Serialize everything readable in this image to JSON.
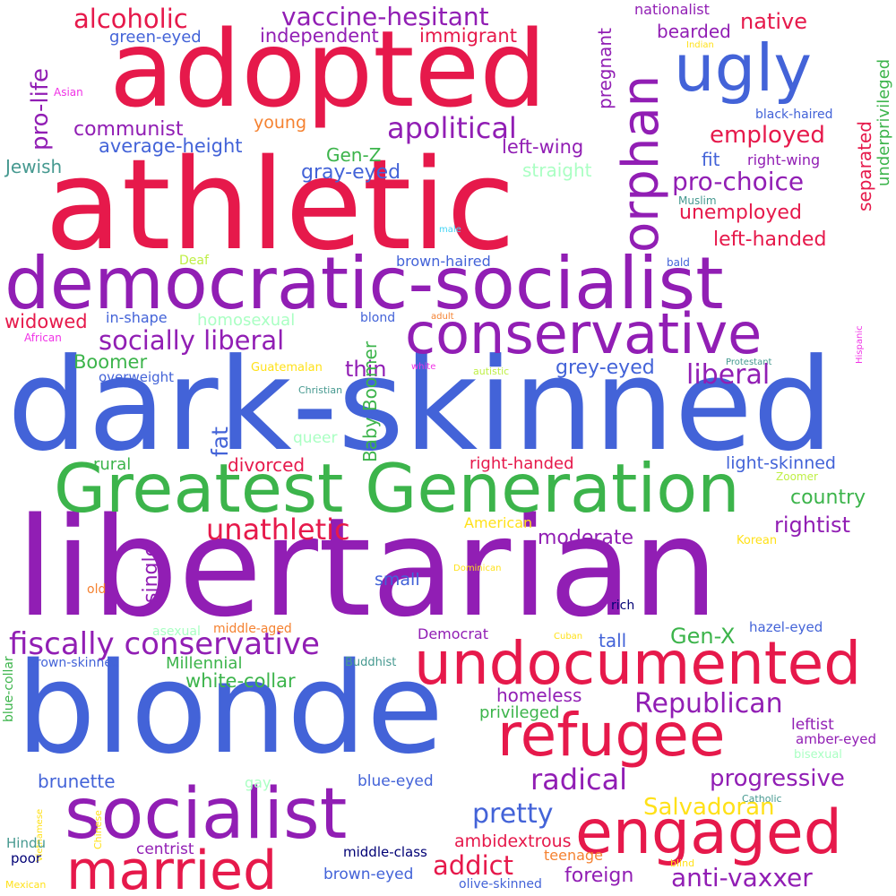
{
  "palette": {
    "red": "#e6194b",
    "purple": "#911eb4",
    "blue": "#4363d8",
    "green": "#3cb44b",
    "orange": "#f58231",
    "yellow": "#ffe119",
    "mint": "#aaffc3",
    "teal": "#469990",
    "pink": "#f032e6",
    "navy": "#000075",
    "lime": "#bfef45",
    "cyan": "#42d4f4"
  },
  "words": {
    "libertarian": "libertarian",
    "dark_skinned": "dark-skinned",
    "athletic": "athletic",
    "blonde": "blonde",
    "adopted": "adopted",
    "democratic_socialist": "democratic-socialist",
    "greatest_generation": "Greatest Generation",
    "socialist": "socialist",
    "undocumented": "undocumented",
    "conservative": "conservative",
    "refugee": "refugee",
    "married": "married",
    "engaged": "engaged",
    "ugly": "ugly",
    "orphan": "orphan",
    "fiscally_conservative": "fiscally conservative",
    "socially_liberal": "socially liberal",
    "alcoholic": "alcoholic",
    "vaccine_hesitant": "vaccine-hesitant",
    "independent": "independent",
    "immigrant": "immigrant",
    "green_eyed": "green-eyed",
    "nationalist": "nationalist",
    "native": "native",
    "bearded": "bearded",
    "indian": "Indian",
    "pregnant": "pregnant",
    "pro_life": "pro-life",
    "asian": "Asian",
    "apolitical": "apolitical",
    "communist": "communist",
    "young": "young",
    "black_haired": "black-haired",
    "separated": "separated",
    "underprivileged": "underprivileged",
    "average_height": "average-height",
    "left_wing": "left-wing",
    "employed": "employed",
    "jewish": "Jewish",
    "gen_z": "Gen-Z",
    "straight": "straight",
    "fit": "fit",
    "right_wing": "right-wing",
    "gray_eyed": "gray-eyed",
    "pro_choice": "pro-choice",
    "unemployed": "unemployed",
    "muslim": "Muslim",
    "male": "male",
    "left_handed": "left-handed",
    "deaf": "Deaf",
    "brown_haired": "brown-haired",
    "bald": "bald",
    "widowed": "widowed",
    "in_shape": "in-shape",
    "homosexual": "homosexual",
    "blond": "blond",
    "adult": "adult",
    "hispanic": "Hispanic",
    "african": "African",
    "boomer": "Boomer",
    "thin": "thin",
    "grey_eyed": "grey-eyed",
    "protestant": "Protestant",
    "overweight": "overweight",
    "guatemalan": "Guatemalan",
    "white": "white",
    "autistic": "autistic",
    "liberal": "liberal",
    "christian": "Christian",
    "fat": "fat",
    "baby_boomer": "Baby Boomer",
    "queer": "queer",
    "rural": "rural",
    "divorced": "divorced",
    "right_handed": "right-handed",
    "light_skinned": "light-skinned",
    "zoomer": "Zoomer",
    "country": "country",
    "unathletic": "unathletic",
    "rightist": "rightist",
    "american": "American",
    "moderate": "moderate",
    "single": "single",
    "korean": "Korean",
    "dominican": "Dominican",
    "small": "small",
    "old": "old",
    "rich": "rich",
    "asexual": "asexual",
    "middle_aged": "middle-aged",
    "democrat": "Democrat",
    "hazel_eyed": "hazel-eyed",
    "gen_x": "Gen-X",
    "tall": "tall",
    "cuban": "Cuban",
    "blue_collar": "blue-collar",
    "brown_skinned": "brown-skinned",
    "millennial": "Millennial",
    "buddhist": "Buddhist",
    "white_collar": "white-collar",
    "homeless": "homeless",
    "republican": "Republican",
    "privileged": "privileged",
    "leftist": "leftist",
    "amber_eyed": "amber-eyed",
    "bisexual": "bisexual",
    "radical": "radical",
    "progressive": "progressive",
    "brunette": "brunette",
    "gay": "gay",
    "blue_eyed": "blue-eyed",
    "catholic": "Catholic",
    "salvadoran": "Salvadoran",
    "pretty": "pretty",
    "vietnamese": "Vietnamese",
    "chinese": "Chinese",
    "hindu": "Hindu",
    "centrist": "centrist",
    "ambidextrous": "ambidextrous",
    "poor": "poor",
    "middle_class": "middle-class",
    "teenage": "teenage",
    "blind": "blind",
    "addict": "addict",
    "foreign": "foreign",
    "anti_vaxxer": "anti-vaxxer",
    "mexican": "Mexican",
    "brown_eyed": "brown-eyed",
    "olive_skinned": "olive-skinned"
  }
}
